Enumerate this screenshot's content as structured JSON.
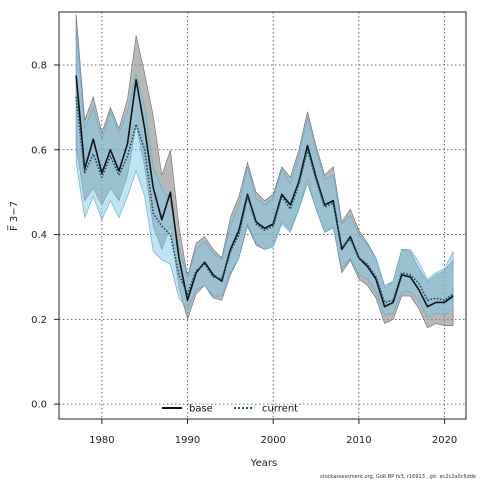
{
  "chart_data": {
    "type": "line",
    "xlabel": "Years",
    "ylabel": "F̅ 3−7",
    "xlim": [
      1975,
      2022.5
    ],
    "ylim": [
      -0.035,
      0.925
    ],
    "xticks": [
      1980,
      1990,
      2000,
      2010,
      2020
    ],
    "yticks": [
      0.0,
      0.2,
      0.4,
      0.6,
      0.8
    ],
    "ytick_labels": [
      "0.0",
      "0.2",
      "0.4",
      "0.6",
      "0.8"
    ],
    "grid": true,
    "legend_position": "bottom-center",
    "x": [
      1977,
      1978,
      1979,
      1980,
      1981,
      1982,
      1983,
      1984,
      1985,
      1986,
      1987,
      1988,
      1989,
      1990,
      1991,
      1992,
      1993,
      1994,
      1995,
      1996,
      1997,
      1998,
      1999,
      2000,
      2001,
      2002,
      2003,
      2004,
      2005,
      2006,
      2007,
      2008,
      2009,
      2010,
      2011,
      2012,
      2013,
      2014,
      2015,
      2016,
      2017,
      2018,
      2019,
      2020,
      2021
    ],
    "series": [
      {
        "name": "base",
        "color": "#111111",
        "line_style": "solid",
        "band_color": "#8c8c8c",
        "values": [
          0.775,
          0.555,
          0.625,
          0.545,
          0.6,
          0.55,
          0.615,
          0.765,
          0.65,
          0.51,
          0.435,
          0.5,
          0.345,
          0.245,
          0.31,
          0.335,
          0.305,
          0.29,
          0.365,
          0.41,
          0.495,
          0.43,
          0.415,
          0.425,
          0.495,
          0.47,
          0.525,
          0.61,
          0.535,
          0.47,
          0.48,
          0.365,
          0.395,
          0.345,
          0.325,
          0.295,
          0.23,
          0.24,
          0.305,
          0.3,
          0.27,
          0.23,
          0.24,
          0.24,
          0.255
        ],
        "lower": [
          0.61,
          0.48,
          0.51,
          0.47,
          0.51,
          0.48,
          0.54,
          0.66,
          0.56,
          0.42,
          0.365,
          0.42,
          0.275,
          0.2,
          0.26,
          0.28,
          0.25,
          0.245,
          0.305,
          0.345,
          0.42,
          0.375,
          0.365,
          0.375,
          0.43,
          0.41,
          0.46,
          0.53,
          0.46,
          0.405,
          0.42,
          0.31,
          0.34,
          0.295,
          0.28,
          0.25,
          0.19,
          0.2,
          0.255,
          0.255,
          0.225,
          0.18,
          0.19,
          0.185,
          0.185
        ],
        "upper": [
          0.92,
          0.67,
          0.725,
          0.64,
          0.7,
          0.65,
          0.72,
          0.87,
          0.78,
          0.68,
          0.54,
          0.6,
          0.42,
          0.3,
          0.38,
          0.395,
          0.365,
          0.345,
          0.44,
          0.49,
          0.57,
          0.5,
          0.48,
          0.495,
          0.56,
          0.535,
          0.6,
          0.69,
          0.61,
          0.54,
          0.56,
          0.43,
          0.46,
          0.41,
          0.38,
          0.345,
          0.275,
          0.29,
          0.365,
          0.36,
          0.32,
          0.29,
          0.305,
          0.315,
          0.34
        ]
      },
      {
        "name": "current",
        "color": "#1a4f6e",
        "line_style": "dotted",
        "band_color": "#7ec8e8",
        "values": [
          0.725,
          0.545,
          0.59,
          0.535,
          0.585,
          0.54,
          0.585,
          0.66,
          0.6,
          0.45,
          0.42,
          0.4,
          0.305,
          0.26,
          0.315,
          0.33,
          0.3,
          0.295,
          0.36,
          0.4,
          0.49,
          0.425,
          0.41,
          0.42,
          0.49,
          0.46,
          0.52,
          0.6,
          0.53,
          0.465,
          0.475,
          0.37,
          0.39,
          0.345,
          0.33,
          0.3,
          0.24,
          0.245,
          0.31,
          0.305,
          0.285,
          0.245,
          0.25,
          0.245,
          0.26
        ],
        "lower": [
          0.57,
          0.44,
          0.49,
          0.435,
          0.48,
          0.44,
          0.49,
          0.55,
          0.49,
          0.36,
          0.34,
          0.33,
          0.25,
          0.225,
          0.27,
          0.28,
          0.255,
          0.255,
          0.31,
          0.345,
          0.425,
          0.38,
          0.365,
          0.37,
          0.425,
          0.405,
          0.46,
          0.52,
          0.46,
          0.405,
          0.415,
          0.32,
          0.345,
          0.305,
          0.295,
          0.265,
          0.21,
          0.215,
          0.265,
          0.265,
          0.245,
          0.205,
          0.215,
          0.21,
          0.225
        ],
        "upper": [
          0.89,
          0.65,
          0.7,
          0.625,
          0.69,
          0.64,
          0.69,
          0.78,
          0.7,
          0.56,
          0.51,
          0.48,
          0.37,
          0.3,
          0.365,
          0.385,
          0.355,
          0.34,
          0.42,
          0.47,
          0.56,
          0.485,
          0.47,
          0.485,
          0.555,
          0.52,
          0.585,
          0.675,
          0.6,
          0.53,
          0.54,
          0.425,
          0.445,
          0.4,
          0.375,
          0.345,
          0.28,
          0.29,
          0.365,
          0.365,
          0.335,
          0.295,
          0.31,
          0.32,
          0.36
        ]
      }
    ]
  },
  "credit": "stockassessment.org, GoR BP fv3, r16913 , git: ec2c2a0c6dde"
}
